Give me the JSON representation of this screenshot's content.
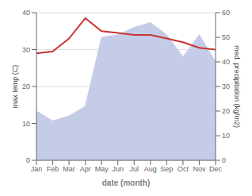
{
  "chart_data": {
    "type": "line",
    "categories": [
      "Jan",
      "Feb",
      "Mar",
      "Apr",
      "May",
      "Jun",
      "Jul",
      "Aug",
      "Sep",
      "Oct",
      "Nov",
      "Dec"
    ],
    "series": [
      {
        "type": "area",
        "axis": "y2",
        "color": "#c5cce8",
        "values": [
          20,
          16,
          18,
          22,
          50,
          51,
          54,
          56,
          51,
          42,
          51,
          40
        ]
      },
      {
        "type": "line",
        "color": "#cc3333",
        "values": [
          29,
          29.5,
          33,
          38.5,
          35,
          34.5,
          34,
          34,
          33,
          32,
          30.5,
          30
        ]
      }
    ],
    "xlabel": "date (month)",
    "ylabel": "max temp (C)",
    "y2label": "med. precipitation (kg/m2)",
    "ylim": [
      0,
      40
    ],
    "yticks": [
      0,
      10,
      20,
      30,
      40
    ],
    "y2lim": [
      0,
      60
    ],
    "y2ticks": [
      0,
      10,
      20,
      30,
      40,
      50,
      60
    ],
    "grid": true
  }
}
